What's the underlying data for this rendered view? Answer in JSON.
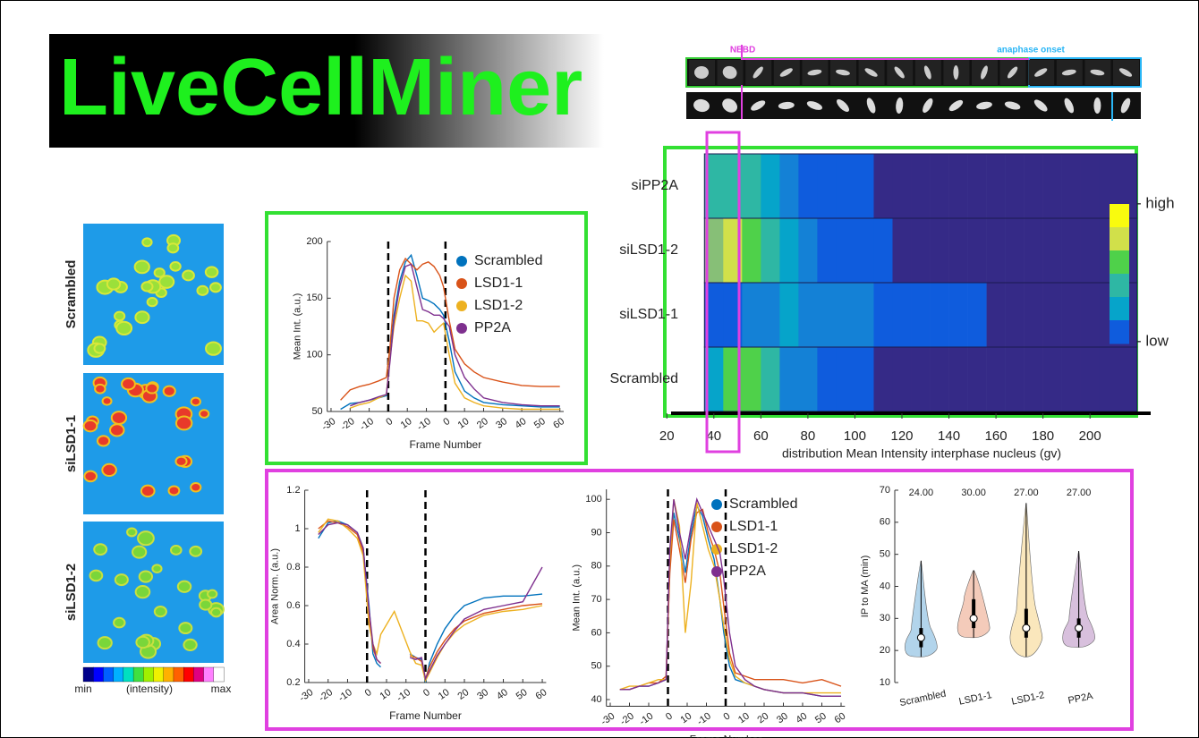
{
  "header": {
    "title": "LiveCellMiner"
  },
  "timelapse": {
    "nebd_label": "NEBD",
    "anaphase_label": "anaphase onset"
  },
  "images": {
    "labels": [
      "Scrambled",
      "siLSD1-1",
      "siLSD1-2"
    ],
    "colorbar_labels": [
      "min",
      "(intensity)",
      "max"
    ]
  },
  "chart_data": [
    {
      "type": "line",
      "xlabel": "Frame Number",
      "ylabel": "Mean Int. (a.u.)",
      "legend": "upper right",
      "xlim": [
        -32,
        92
      ],
      "ylim": [
        50,
        200
      ],
      "yticks": [
        50,
        100,
        150,
        200
      ],
      "xticks": [
        -30,
        -20,
        -10,
        0,
        10,
        {
          "value": 20,
          "label": "-10"
        },
        {
          "value": 30,
          "label": "0"
        },
        {
          "value": 40,
          "label": "10"
        },
        {
          "value": 50,
          "label": "20"
        },
        {
          "value": 60,
          "label": "30"
        },
        {
          "value": 70,
          "label": "40"
        },
        {
          "value": 80,
          "label": "50"
        },
        {
          "value": 90,
          "label": "60"
        }
      ],
      "vlines": [
        0,
        30
      ],
      "x": [
        -25,
        -20,
        -15,
        -10,
        -5,
        -1,
        1,
        3,
        6,
        9,
        12,
        15,
        18,
        21,
        24,
        27,
        29,
        32,
        35,
        40,
        45,
        50,
        60,
        70,
        80,
        90
      ],
      "series": [
        {
          "name": "Scrambled",
          "color": "#0072BD",
          "values": [
            52,
            57,
            58,
            60,
            62,
            64,
            100,
            135,
            165,
            182,
            188,
            170,
            150,
            148,
            145,
            140,
            135,
            112,
            85,
            68,
            62,
            58,
            56,
            55,
            54,
            54
          ]
        },
        {
          "name": "LSD1-1",
          "color": "#D95319",
          "values": [
            60,
            69,
            72,
            74,
            77,
            80,
            108,
            150,
            175,
            185,
            180,
            175,
            180,
            182,
            178,
            170,
            160,
            130,
            105,
            92,
            85,
            80,
            76,
            73,
            72,
            72
          ]
        },
        {
          "name": "LSD1-2",
          "color": "#EDB120",
          "values": [
            null,
            53,
            56,
            58,
            62,
            65,
            98,
            125,
            150,
            170,
            165,
            130,
            130,
            128,
            120,
            125,
            128,
            100,
            75,
            62,
            58,
            55,
            53,
            52,
            52,
            52
          ]
        },
        {
          "name": "PP2A",
          "color": "#7E2F8E",
          "values": [
            null,
            55,
            58,
            60,
            63,
            65,
            95,
            130,
            160,
            178,
            180,
            160,
            140,
            138,
            135,
            135,
            132,
            125,
            100,
            80,
            70,
            62,
            58,
            56,
            55,
            55
          ]
        }
      ]
    },
    {
      "type": "heatmap",
      "xlabel": "distribution Mean Intensity interphase nucleus (gv)",
      "rows": [
        "siPP2A",
        "siLSD1-2",
        "siLSD1-1",
        "Scrambled"
      ],
      "bins": [
        36,
        44,
        52,
        60,
        68,
        76,
        84,
        92,
        100,
        108,
        116,
        124,
        132,
        140,
        148,
        156,
        164,
        172,
        180,
        188,
        196,
        204,
        212,
        220
      ],
      "values": [
        [
          0.45,
          0.55,
          0.5,
          0.35,
          0.22,
          0.16,
          0.12,
          0.09,
          0.07,
          0.06,
          0.05,
          0.05,
          0.04,
          0.04,
          0.03,
          0.03,
          0.03,
          0.02,
          0.02,
          0.02,
          0.02,
          0.02,
          0.02
        ],
        [
          0.6,
          0.85,
          0.75,
          0.5,
          0.32,
          0.22,
          0.16,
          0.12,
          0.09,
          0.07,
          0.06,
          0.05,
          0.05,
          0.04,
          0.04,
          0.03,
          0.03,
          0.03,
          0.02,
          0.02,
          0.02,
          0.02,
          0.02
        ],
        [
          0.1,
          0.15,
          0.25,
          0.3,
          0.33,
          0.3,
          0.27,
          0.24,
          0.2,
          0.17,
          0.14,
          0.12,
          0.1,
          0.08,
          0.07,
          0.06,
          0.05,
          0.04,
          0.04,
          0.03,
          0.03,
          0.03,
          0.03
        ],
        [
          0.4,
          0.72,
          0.78,
          0.5,
          0.3,
          0.2,
          0.14,
          0.1,
          0.08,
          0.06,
          0.05,
          0.05,
          0.04,
          0.04,
          0.03,
          0.03,
          0.03,
          0.02,
          0.02,
          0.02,
          0.02,
          0.02,
          0.02
        ]
      ],
      "xlim": [
        18,
        222
      ],
      "xticks": [
        20,
        40,
        60,
        80,
        100,
        120,
        140,
        160,
        180,
        200
      ],
      "clim": [
        0,
        1
      ],
      "colormap": [
        "#352a87",
        "#0f5cdd",
        "#1481d6",
        "#06a4ca",
        "#2eb7a4",
        "#87bf77",
        "#4fd14a",
        "#d1e04a",
        "#f9fb0e"
      ],
      "colorbar_labels": [
        "- high",
        "- low"
      ]
    },
    {
      "type": "line",
      "xlabel": "Frame Number",
      "ylabel": "Area Norm. (a.u.)",
      "xlim": [
        -32,
        92
      ],
      "ylim": [
        0.2,
        1.2
      ],
      "yticks": [
        0.2,
        0.4,
        0.6,
        0.8,
        1,
        1.2
      ],
      "xticks": [
        -30,
        -20,
        -10,
        0,
        10,
        {
          "value": 20,
          "label": "-10"
        },
        {
          "value": 30,
          "label": "0"
        },
        {
          "value": 40,
          "label": "10"
        },
        {
          "value": 50,
          "label": "20"
        },
        {
          "value": 60,
          "label": "30"
        },
        {
          "value": 70,
          "label": "40"
        },
        {
          "value": 80,
          "label": "50"
        },
        {
          "value": 90,
          "label": "60"
        }
      ],
      "vlines": [
        0,
        30
      ],
      "x": [
        -25,
        -20,
        -15,
        -10,
        -5,
        -2,
        1,
        3,
        5,
        7,
        14,
        22,
        25,
        28,
        30,
        32,
        36,
        40,
        45,
        50,
        60,
        70,
        80,
        90
      ],
      "series": [
        {
          "color": "#0072BD",
          "values": [
            0.95,
            1.03,
            1.04,
            1.02,
            0.98,
            0.9,
            0.6,
            0.35,
            0.3,
            0.28,
            null,
            0.35,
            0.33,
            0.32,
            0.2,
            0.3,
            0.4,
            0.48,
            0.55,
            0.6,
            0.64,
            0.65,
            0.65,
            0.66
          ]
        },
        {
          "color": "#D95319",
          "values": [
            1.0,
            1.04,
            1.03,
            1.01,
            0.97,
            0.88,
            0.55,
            0.38,
            0.32,
            0.3,
            null,
            0.34,
            0.33,
            0.31,
            0.22,
            0.28,
            0.36,
            0.42,
            0.48,
            0.52,
            0.56,
            0.58,
            0.6,
            0.61
          ]
        },
        {
          "color": "#EDB120",
          "values": [
            0.98,
            1.05,
            1.04,
            1.0,
            0.95,
            0.86,
            0.5,
            0.4,
            0.35,
            0.45,
            0.57,
            0.36,
            0.3,
            0.29,
            0.21,
            0.25,
            0.33,
            0.4,
            0.46,
            0.5,
            0.55,
            0.57,
            0.58,
            0.6
          ]
        },
        {
          "color": "#7E2F8E",
          "values": [
            0.97,
            1.02,
            1.03,
            1.02,
            0.98,
            0.9,
            0.58,
            0.4,
            0.32,
            0.3,
            null,
            0.33,
            0.32,
            0.33,
            0.22,
            0.26,
            0.34,
            0.4,
            0.47,
            0.53,
            0.58,
            0.6,
            0.62,
            0.8
          ]
        }
      ]
    },
    {
      "type": "line",
      "xlabel": "Frame Number",
      "ylabel": "Mean Int. (a.u.)",
      "legend": "upper right",
      "xlim": [
        -32,
        92
      ],
      "ylim": [
        38,
        103
      ],
      "yticks": [
        40,
        50,
        60,
        70,
        80,
        90,
        100
      ],
      "xticks": [
        -30,
        -20,
        -10,
        0,
        10,
        {
          "value": 20,
          "label": "-10"
        },
        {
          "value": 30,
          "label": "0"
        },
        {
          "value": 40,
          "label": "10"
        },
        {
          "value": 50,
          "label": "20"
        },
        {
          "value": 60,
          "label": "30"
        },
        {
          "value": 70,
          "label": "40"
        },
        {
          "value": 80,
          "label": "50"
        },
        {
          "value": 90,
          "label": "60"
        }
      ],
      "vlines": [
        0,
        30
      ],
      "x": [
        -25,
        -20,
        -15,
        -10,
        -5,
        -1,
        1,
        3,
        6,
        9,
        12,
        15,
        18,
        21,
        24,
        27,
        29,
        32,
        35,
        40,
        45,
        50,
        60,
        70,
        80,
        90
      ],
      "series": [
        {
          "name": "Scrambled",
          "color": "#0072BD",
          "values": [
            43,
            43,
            44,
            44,
            45,
            46,
            80,
            96,
            88,
            78,
            90,
            98,
            95,
            88,
            82,
            70,
            60,
            50,
            46,
            45,
            44,
            43,
            42,
            42,
            41,
            41
          ]
        },
        {
          "name": "LSD1-1",
          "color": "#D95319",
          "values": [
            43,
            43,
            44,
            45,
            45,
            47,
            78,
            94,
            85,
            75,
            88,
            96,
            97,
            90,
            85,
            78,
            68,
            54,
            48,
            47,
            46,
            46,
            46,
            45,
            46,
            44
          ]
        },
        {
          "name": "LSD1-2",
          "color": "#EDB120",
          "values": [
            43,
            44,
            44,
            45,
            46,
            46,
            82,
            100,
            92,
            60,
            75,
            99,
            92,
            85,
            80,
            70,
            62,
            52,
            47,
            45,
            44,
            43,
            42,
            42,
            42,
            42
          ]
        },
        {
          "name": "PP2A",
          "color": "#7E2F8E",
          "values": [
            43,
            43,
            44,
            44,
            45,
            46,
            85,
            100,
            90,
            82,
            92,
            100,
            96,
            92,
            88,
            84,
            76,
            60,
            50,
            46,
            44,
            43,
            42,
            42,
            41,
            41
          ]
        }
      ]
    },
    {
      "type": "violin",
      "ylabel": "IP to MA (min)",
      "categories": [
        "Scrambled",
        "LSD1-1",
        "LSD1-2",
        "PP2A"
      ],
      "colors": [
        "#0072BD",
        "#D95319",
        "#EDB120",
        "#7E2F8E"
      ],
      "values": [
        24,
        30,
        27,
        27
      ],
      "value_labels": [
        "24.00",
        "30.00",
        "27.00",
        "27.00"
      ],
      "min": [
        18,
        24,
        18,
        21
      ],
      "q1": [
        21,
        27,
        24,
        24
      ],
      "q3": [
        27,
        36,
        33,
        30
      ],
      "max": [
        48,
        45,
        66,
        51
      ],
      "ylim": [
        10,
        70
      ],
      "yticks": [
        10,
        20,
        30,
        40,
        50,
        60,
        70
      ]
    }
  ]
}
